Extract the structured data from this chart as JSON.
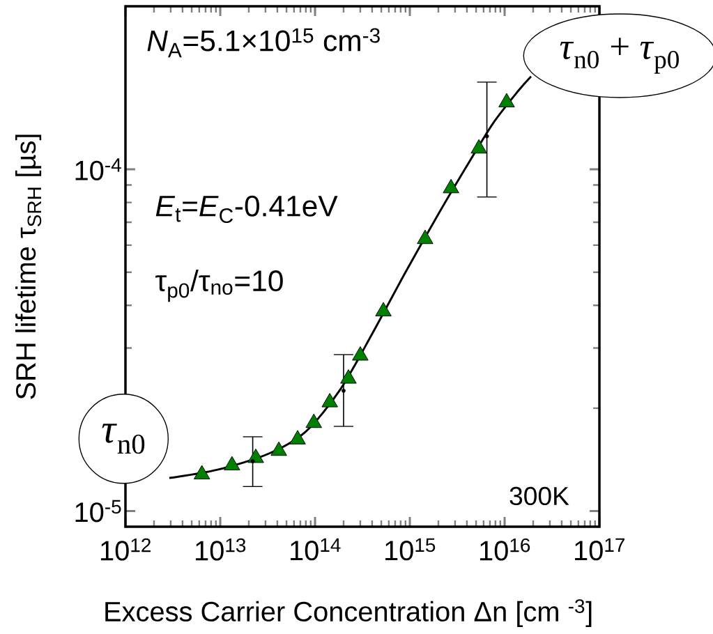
{
  "chart_data": {
    "type": "scatter",
    "xlabel": "Excess   Carrier   Concentration   Δn [cm $^{-3}$]",
    "ylabel": "SRH lifetime τ$_{SRH}$ [µs]",
    "log": "xy",
    "xlim": [
      1000000000000.0,
      1e+17
    ],
    "ylim": [
      9e-06,
      0.0003
    ],
    "xticks": [
      {
        "value": 1000000000000.0,
        "label": "10$^{12}$"
      },
      {
        "value": 10000000000000.0,
        "label": "10$^{13}$"
      },
      {
        "value": 100000000000000.0,
        "label": "10$^{14}$"
      },
      {
        "value": 1000000000000000.0,
        "label": "10$^{15}$"
      },
      {
        "value": 1e+16,
        "label": "10$^{16}$"
      },
      {
        "value": 1e+17,
        "label": "10$^{17}$"
      }
    ],
    "yticks": [
      {
        "value": 1e-05,
        "label": "10$^{-5}$"
      },
      {
        "value": 0.0001,
        "label": "10$^{-4}$"
      }
    ],
    "grid": false,
    "series": [
      {
        "color": "#008000",
        "marker": "triangle",
        "x": [
          6400000000000.0,
          13300000000000.0,
          23700000000000.0,
          41500000000000.0,
          65500000000000.0,
          97000000000000.0,
          143000000000000.0,
          225000000000000.0,
          300000000000000.0,
          526000000000000.0,
          1450000000000000.0,
          2720000000000000.0,
          5350000000000000.0,
          1.05e+16
        ],
        "values": [
          1.28e-05,
          1.36e-05,
          1.43e-05,
          1.5e-05,
          1.62e-05,
          1.81e-05,
          2.08e-05,
          2.44e-05,
          2.85e-05,
          3.84e-05,
          6.25e-05,
          8.8e-05,
          0.000115,
          0.000157
        ]
      },
      {
        "type": "scatter",
        "color": "#000000",
        "marker": "none",
        "x": [
          22000000000000.0,
          200000000000000.0,
          6500000000000000.0
        ],
        "values": [
          1.4e-05,
          2.25e-05,
          0.000125
        ],
        "errors": [
          [
            1.18e-05,
            1.65e-05
          ],
          [
            1.77e-05,
            2.87e-05
          ],
          [
            8.3e-05,
            0.00018
          ]
        ]
      },
      {
        "type": "line",
        "color": "#000000",
        "marker": "none",
        "x": [
          2900000000000.0,
          9200000000000.0,
          32000000000000.0,
          80000000000000.0,
          185000000000000.0,
          400000000000000.0,
          900000000000000.0,
          2000000000000000.0,
          3800000000000000.0,
          7500000000000000.0,
          1.4e+16,
          1.9e+16
        ],
        "values": [
          1.25e-05,
          1.32e-05,
          1.47e-05,
          1.71e-05,
          2.27e-05,
          3.3e-05,
          5e-05,
          7.4e-05,
          0.0001,
          0.000136,
          0.00017,
          0.000187
        ]
      }
    ],
    "annotations": [
      "*N*$_{A}$=5.1×10$^{15}$ cm$^{-3}$",
      "*E*$_{t}$=*E*$_{C}$-0.41eV",
      "τ$_{p0}$/τ$_{no}$=10",
      "300K",
      "*τ*$_{n0}$",
      "*τ*$_{n0}$ + *τ*$_{p0}$"
    ]
  }
}
